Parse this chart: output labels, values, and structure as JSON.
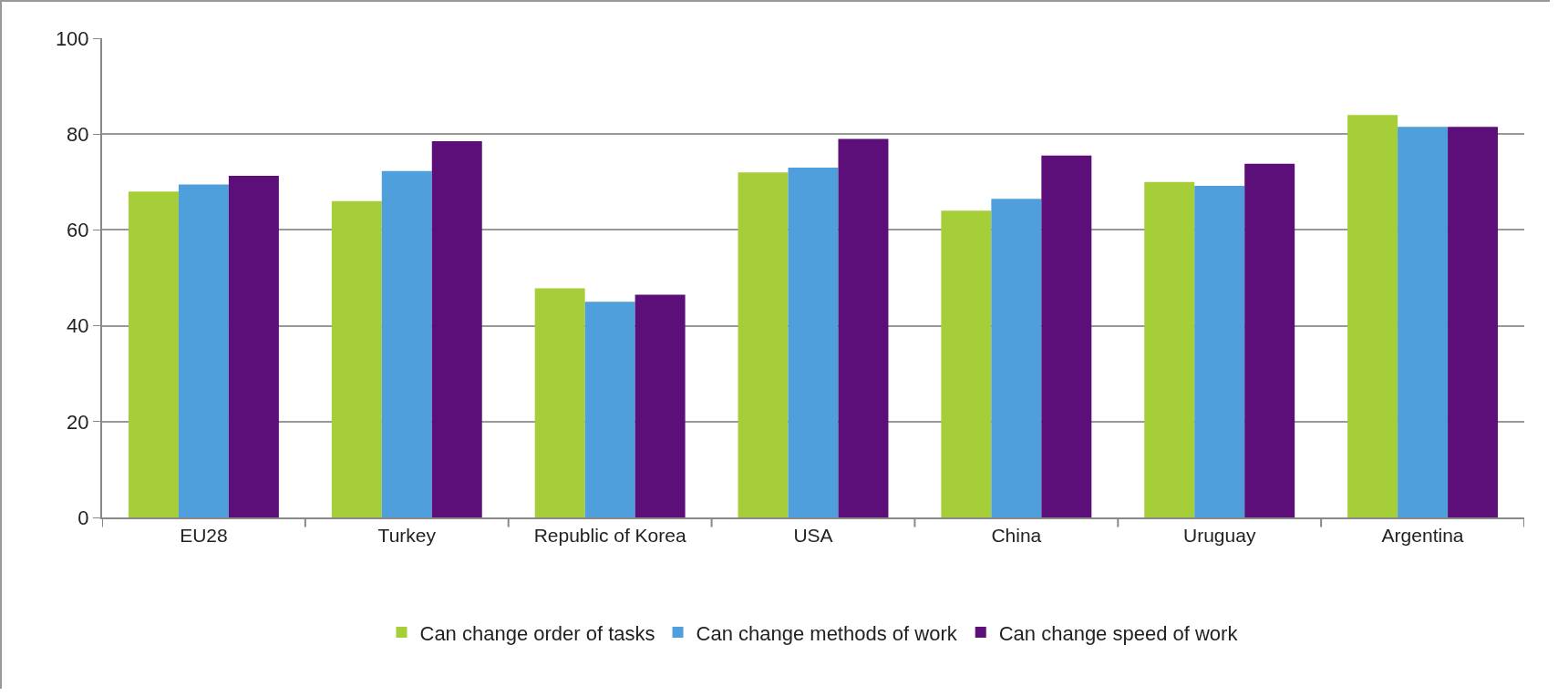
{
  "chart_data": {
    "type": "bar",
    "categories": [
      "EU28",
      "Turkey",
      "Republic of Korea",
      "USA",
      "China",
      "Uruguay",
      "Argentina"
    ],
    "series": [
      {
        "name": "Can change order of tasks",
        "color": "#a6ce39",
        "values": [
          68,
          66,
          47.8,
          72,
          64,
          70,
          84
        ]
      },
      {
        "name": "Can change methods of work",
        "color": "#4f9fdc",
        "values": [
          69.5,
          72.3,
          45,
          73,
          66.5,
          69.2,
          81.5
        ]
      },
      {
        "name": "Can change speed of work",
        "color": "#5c0f78",
        "values": [
          71.3,
          78.5,
          46.5,
          79,
          75.5,
          73.8,
          81.5
        ]
      }
    ],
    "ylim": [
      0,
      100
    ],
    "yticks": [
      0,
      20,
      40,
      60,
      80,
      100
    ],
    "grid": "y",
    "legend": "bottom"
  }
}
